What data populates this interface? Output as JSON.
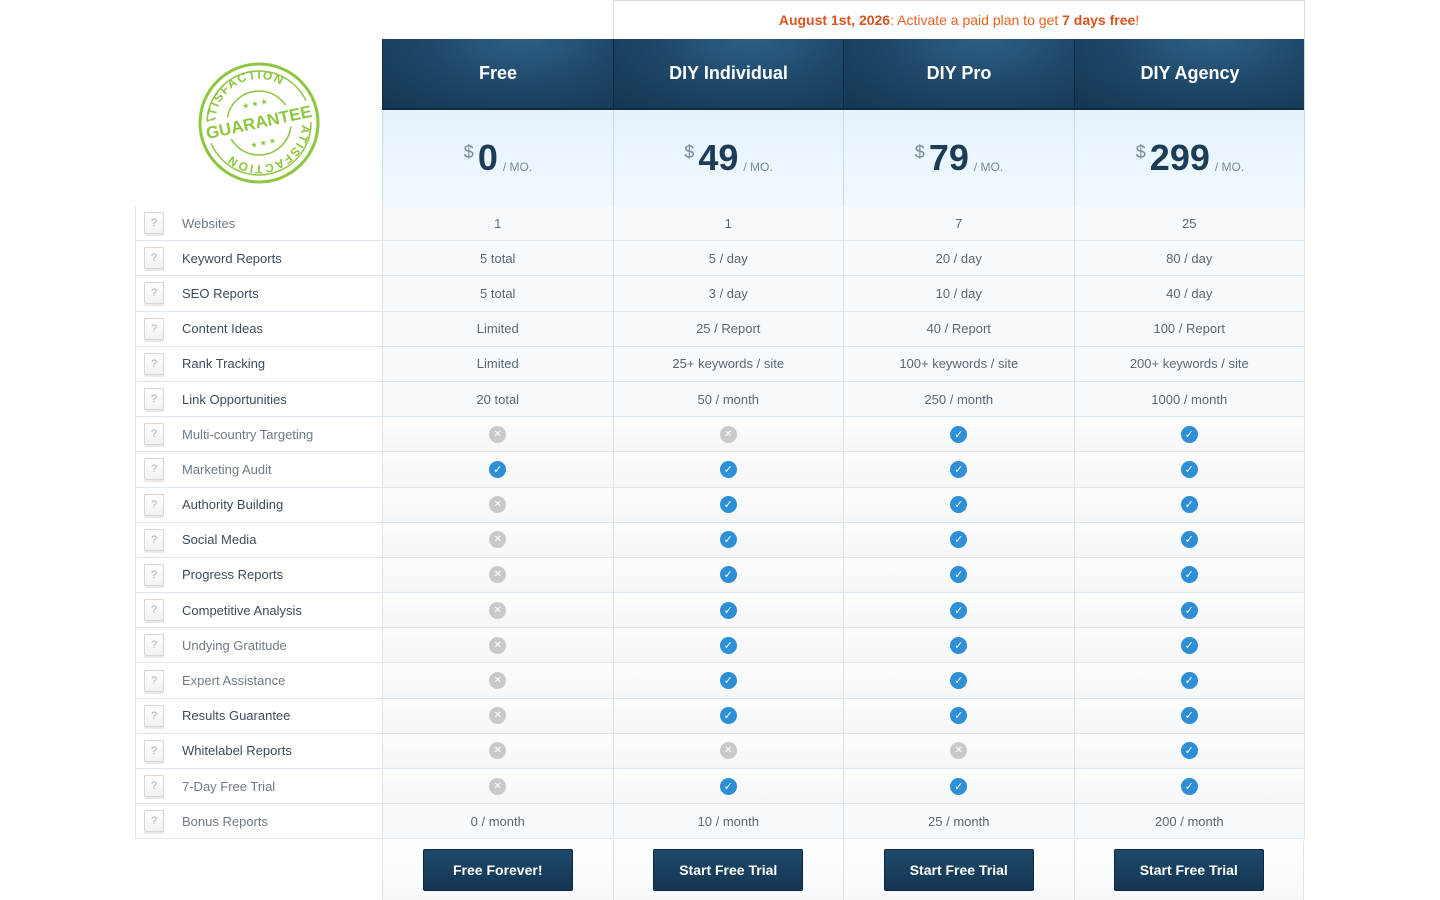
{
  "promo": {
    "date": "August 1st, 2026",
    "text_before": ": Activate a paid plan to get ",
    "highlight": "7 days free",
    "text_after": "!"
  },
  "badge": {
    "top_text": "SATISFACTION",
    "center_text": "GUARANTEE",
    "bottom_text": "SATISFACTION",
    "color": "#8dc63f"
  },
  "plans": [
    {
      "name": "Free",
      "currency": "$",
      "price": "0",
      "period": "/ MO.",
      "button": "Free Forever!"
    },
    {
      "name": "DIY Individual",
      "currency": "$",
      "price": "49",
      "period": "/ MO.",
      "button": "Start Free Trial"
    },
    {
      "name": "DIY Pro",
      "currency": "$",
      "price": "79",
      "period": "/ MO.",
      "button": "Start Free Trial"
    },
    {
      "name": "DIY Agency",
      "currency": "$",
      "price": "299",
      "period": "/ MO.",
      "button": "Start Free Trial"
    }
  ],
  "help_icon": "?",
  "features": [
    {
      "label": "Websites",
      "muted": true,
      "values": [
        "1",
        "1",
        "7",
        "25"
      ]
    },
    {
      "label": "Keyword Reports",
      "muted": false,
      "values": [
        "5 total",
        "5 / day",
        "20 / day",
        "80 / day"
      ]
    },
    {
      "label": "SEO Reports",
      "muted": false,
      "values": [
        "5 total",
        "3 / day",
        "10 / day",
        "40 / day"
      ]
    },
    {
      "label": "Content Ideas",
      "muted": false,
      "values": [
        "Limited",
        "25 / Report",
        "40 / Report",
        "100 / Report"
      ]
    },
    {
      "label": "Rank Tracking",
      "muted": false,
      "values": [
        "Limited",
        "25+ keywords / site",
        "100+ keywords / site",
        "200+ keywords / site"
      ]
    },
    {
      "label": "Link Opportunities",
      "muted": false,
      "values": [
        "20 total",
        "50 / month",
        "250 / month",
        "1000 / month"
      ]
    },
    {
      "label": "Multi-country Targeting",
      "muted": true,
      "values": [
        false,
        false,
        true,
        true
      ]
    },
    {
      "label": "Marketing Audit",
      "muted": true,
      "values": [
        true,
        true,
        true,
        true
      ]
    },
    {
      "label": "Authority Building",
      "muted": false,
      "values": [
        false,
        true,
        true,
        true
      ]
    },
    {
      "label": "Social Media",
      "muted": false,
      "values": [
        false,
        true,
        true,
        true
      ]
    },
    {
      "label": "Progress Reports",
      "muted": false,
      "values": [
        false,
        true,
        true,
        true
      ]
    },
    {
      "label": "Competitive Analysis",
      "muted": false,
      "values": [
        false,
        true,
        true,
        true
      ]
    },
    {
      "label": "Undying Gratitude",
      "muted": true,
      "values": [
        false,
        true,
        true,
        true
      ]
    },
    {
      "label": "Expert Assistance",
      "muted": true,
      "values": [
        false,
        true,
        true,
        true
      ]
    },
    {
      "label": "Results Guarantee",
      "muted": false,
      "values": [
        false,
        true,
        true,
        true
      ]
    },
    {
      "label": "Whitelabel Reports",
      "muted": false,
      "values": [
        false,
        false,
        false,
        true
      ]
    },
    {
      "label": "7-Day Free Trial",
      "muted": true,
      "values": [
        false,
        true,
        true,
        true
      ]
    },
    {
      "label": "Bonus Reports",
      "muted": true,
      "values": [
        "0 / month",
        "10 / month",
        "25 / month",
        "200 / month"
      ]
    }
  ],
  "icons": {
    "check": "check-icon",
    "cross": "cross-icon",
    "check_color": "#2d8fd5",
    "cross_color": "#c9c9c9"
  }
}
